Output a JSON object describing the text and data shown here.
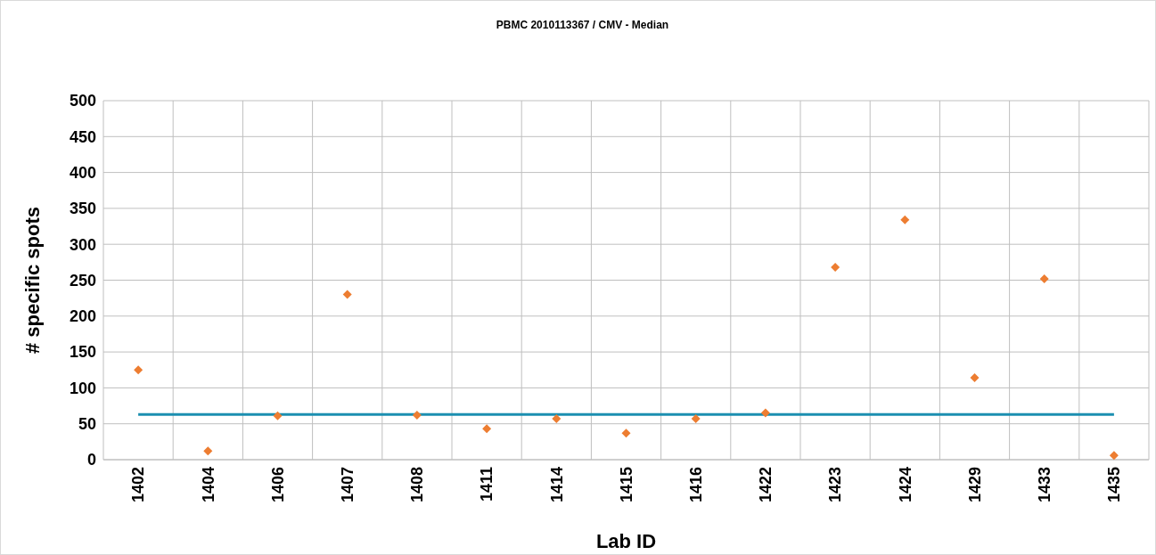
{
  "chart_data": {
    "type": "scatter",
    "title": "PBMC 2010113367 / CMV - Median",
    "xlabel": "Lab ID",
    "ylabel": "# specific spots",
    "categories": [
      "1402",
      "1404",
      "1406",
      "1407",
      "1408",
      "1411",
      "1414",
      "1415",
      "1416",
      "1422",
      "1423",
      "1424",
      "1429",
      "1433",
      "1435"
    ],
    "series": [
      {
        "color": "#ed7d31",
        "marker": "diamond",
        "values": [
          125,
          12,
          61,
          230,
          62,
          43,
          57,
          37,
          57,
          65,
          268,
          334,
          114,
          252,
          6
        ]
      },
      {
        "type": "line",
        "color": "#1b8fb0",
        "marker": "none",
        "values": [
          63,
          63,
          63,
          63,
          63,
          63,
          63,
          63,
          63,
          63,
          63,
          63,
          63,
          63,
          63
        ]
      }
    ],
    "ylim": [
      0,
      500
    ],
    "yticks": [
      0,
      50,
      100,
      150,
      200,
      250,
      300,
      350,
      400,
      450,
      500
    ],
    "grid": true
  }
}
